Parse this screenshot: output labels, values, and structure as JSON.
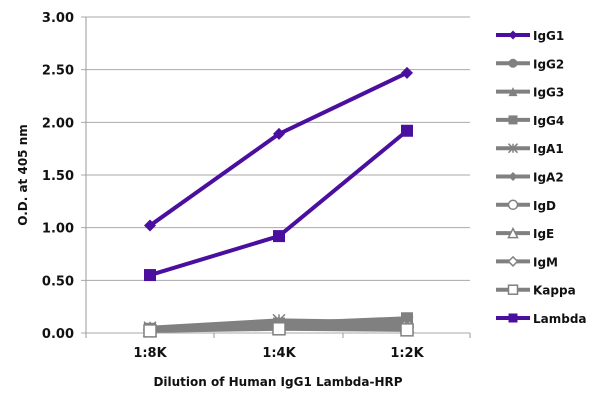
{
  "chart_data": {
    "type": "line",
    "title": "",
    "xlabel": "Dilution of Human IgG1 Lambda-HRP",
    "ylabel": "O.D. at 405 nm",
    "categories": [
      "1:8K",
      "1:4K",
      "1:2K"
    ],
    "ylim": [
      0,
      3
    ],
    "yticks": [
      "0.00",
      "0.50",
      "1.00",
      "1.50",
      "2.00",
      "2.50",
      "3.00"
    ],
    "grid": true,
    "legend_position": "right",
    "series": [
      {
        "name": "IgG1",
        "values": [
          1.02,
          1.89,
          2.47
        ],
        "color": "#4b0fa0",
        "marker": "diamond"
      },
      {
        "name": "IgG2",
        "values": [
          0.04,
          0.07,
          0.08
        ],
        "color": "#808080",
        "marker": "circle"
      },
      {
        "name": "IgG3",
        "values": [
          0.04,
          0.08,
          0.09
        ],
        "color": "#808080",
        "marker": "triangle"
      },
      {
        "name": "IgG4",
        "values": [
          0.04,
          0.09,
          0.14
        ],
        "color": "#808080",
        "marker": "square"
      },
      {
        "name": "IgA1",
        "values": [
          0.05,
          0.12,
          0.1
        ],
        "color": "#808080",
        "marker": "x"
      },
      {
        "name": "IgA2",
        "values": [
          0.03,
          0.06,
          0.07
        ],
        "color": "#808080",
        "marker": "diamond"
      },
      {
        "name": "IgD",
        "values": [
          0.03,
          0.05,
          0.06
        ],
        "color": "#808080",
        "marker": "circle-open"
      },
      {
        "name": "IgE",
        "values": [
          0.03,
          0.06,
          0.07
        ],
        "color": "#808080",
        "marker": "triangle-open"
      },
      {
        "name": "IgM",
        "values": [
          0.03,
          0.05,
          0.05
        ],
        "color": "#808080",
        "marker": "diamond-open"
      },
      {
        "name": "Kappa",
        "values": [
          0.02,
          0.04,
          0.03
        ],
        "color": "#808080",
        "marker": "square-open"
      },
      {
        "name": "Lambda",
        "values": [
          0.55,
          0.92,
          1.92
        ],
        "color": "#4b0fa0",
        "marker": "square"
      }
    ]
  }
}
